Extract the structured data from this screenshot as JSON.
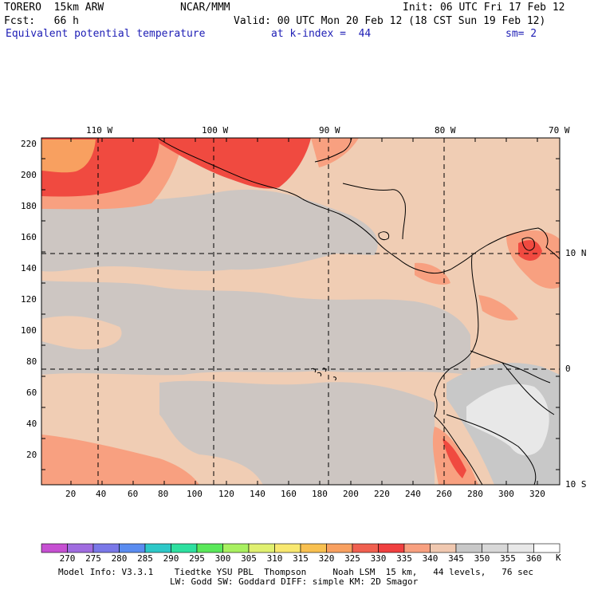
{
  "header": {
    "model_name": "TORERO  15km ARW",
    "center": "NCAR/MMM",
    "init": "Init: 06 UTC Fri 17 Feb 12",
    "fcst": "Fcst:   66 h",
    "valid": "Valid: 00 UTC Mon 20 Feb 12 (18 CST Sun 19 Feb 12)",
    "field": "Equivalent potential temperature",
    "level": "at k-index =  44",
    "smoothing": "sm= 2"
  },
  "axes": {
    "top_longitudes": [
      "110 W",
      "100 W",
      "90 W",
      "80 W",
      "70 W"
    ],
    "right_latitudes": [
      "10 N",
      "0",
      "10 S"
    ],
    "left_ticks": [
      "220",
      "200",
      "180",
      "160",
      "140",
      "120",
      "100",
      "80",
      "60",
      "40",
      "20"
    ],
    "bottom_ticks": [
      "20",
      "40",
      "60",
      "80",
      "100",
      "120",
      "140",
      "160",
      "180",
      "200",
      "220",
      "240",
      "260",
      "280",
      "300",
      "320"
    ]
  },
  "colorbar": {
    "unit": "K",
    "levels": [
      "270",
      "275",
      "280",
      "285",
      "290",
      "295",
      "300",
      "305",
      "310",
      "315",
      "320",
      "325",
      "330",
      "335",
      "340",
      "345",
      "350",
      "355",
      "360"
    ],
    "colors": [
      "#c650d2",
      "#a06ce0",
      "#7a78e8",
      "#5a8cf0",
      "#2ec8c8",
      "#2ee0a0",
      "#5ae85a",
      "#a8f060",
      "#e0f070",
      "#f8e870",
      "#f8c050",
      "#f8a060",
      "#f06050",
      "#f04040",
      "#f8a080",
      "#f0c8b0",
      "#c8c8c8",
      "#d8d8d8",
      "#e8e8e8",
      "#ffffff"
    ]
  },
  "footer": {
    "line1": "Model Info: V3.3.1    Tiedtke YSU PBL  Thompson     Noah LSM  15 km,   44 levels,   76 sec",
    "line2": "LW: Godd SW: Goddard DIFF: simple KM: 2D Smagor"
  }
}
